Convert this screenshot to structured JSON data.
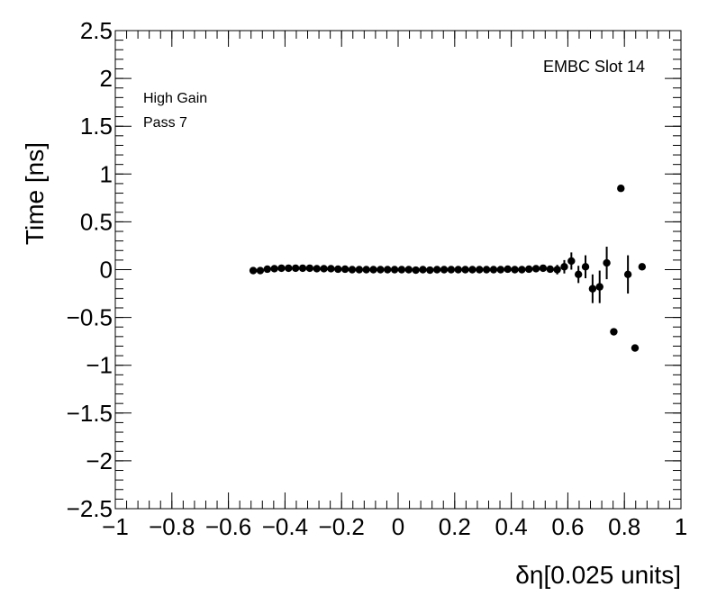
{
  "chart_data": {
    "type": "scatter",
    "title": "",
    "xlabel": "δη[0.025 units]",
    "ylabel": "Time [ns]",
    "xlim": [
      -1,
      1
    ],
    "ylim": [
      -2.5,
      2.5
    ],
    "x_ticks": [
      -1,
      -0.8,
      -0.6,
      -0.4,
      -0.2,
      0,
      0.2,
      0.4,
      0.6,
      0.8,
      1
    ],
    "x_tick_labels": [
      "−1",
      "−0.8",
      "−0.6",
      "−0.4",
      "−0.2",
      "0",
      "0.2",
      "0.4",
      "0.6",
      "0.8",
      "1"
    ],
    "y_ticks": [
      -2.5,
      -2,
      -1.5,
      -1,
      -0.5,
      0,
      0.5,
      1,
      1.5,
      2,
      2.5
    ],
    "y_tick_labels": [
      "−2.5",
      "−2",
      "−1.5",
      "−1",
      "−0.5",
      "0",
      "0.5",
      "1",
      "1.5",
      "2",
      "2.5"
    ],
    "annotations": {
      "slot": "EMBC Slot 14",
      "gain": "High Gain",
      "pass": "Pass 7"
    },
    "marker_color": "#000000",
    "grid": false,
    "points": [
      {
        "x": -0.5125,
        "y": -0.01,
        "err": 0.01
      },
      {
        "x": -0.4875,
        "y": -0.01,
        "err": 0.01
      },
      {
        "x": -0.4625,
        "y": 0.005,
        "err": 0.01
      },
      {
        "x": -0.4375,
        "y": 0.01,
        "err": 0.01
      },
      {
        "x": -0.4125,
        "y": 0.015,
        "err": 0.01
      },
      {
        "x": -0.3875,
        "y": 0.015,
        "err": 0.01
      },
      {
        "x": -0.3625,
        "y": 0.015,
        "err": 0.01
      },
      {
        "x": -0.3375,
        "y": 0.015,
        "err": 0.01
      },
      {
        "x": -0.3125,
        "y": 0.015,
        "err": 0.01
      },
      {
        "x": -0.2875,
        "y": 0.01,
        "err": 0.01
      },
      {
        "x": -0.2625,
        "y": 0.01,
        "err": 0.01
      },
      {
        "x": -0.2375,
        "y": 0.01,
        "err": 0.01
      },
      {
        "x": -0.2125,
        "y": 0.005,
        "err": 0.01
      },
      {
        "x": -0.1875,
        "y": 0.005,
        "err": 0.01
      },
      {
        "x": -0.1625,
        "y": 0.0,
        "err": 0.01
      },
      {
        "x": -0.1375,
        "y": 0.0,
        "err": 0.01
      },
      {
        "x": -0.1125,
        "y": 0.0,
        "err": 0.01
      },
      {
        "x": -0.0875,
        "y": 0.0,
        "err": 0.01
      },
      {
        "x": -0.0625,
        "y": 0.0,
        "err": 0.01
      },
      {
        "x": -0.0375,
        "y": 0.0,
        "err": 0.01
      },
      {
        "x": -0.0125,
        "y": 0.0,
        "err": 0.01
      },
      {
        "x": 0.0125,
        "y": 0.0,
        "err": 0.01
      },
      {
        "x": 0.0375,
        "y": 0.0,
        "err": 0.01
      },
      {
        "x": 0.0625,
        "y": -0.005,
        "err": 0.01
      },
      {
        "x": 0.0875,
        "y": 0.0,
        "err": 0.01
      },
      {
        "x": 0.1125,
        "y": -0.005,
        "err": 0.01
      },
      {
        "x": 0.1375,
        "y": 0.0,
        "err": 0.01
      },
      {
        "x": 0.1625,
        "y": 0.0,
        "err": 0.01
      },
      {
        "x": 0.1875,
        "y": 0.0,
        "err": 0.01
      },
      {
        "x": 0.2125,
        "y": 0.0,
        "err": 0.01
      },
      {
        "x": 0.2375,
        "y": 0.0,
        "err": 0.01
      },
      {
        "x": 0.2625,
        "y": 0.0,
        "err": 0.01
      },
      {
        "x": 0.2875,
        "y": 0.0,
        "err": 0.01
      },
      {
        "x": 0.3125,
        "y": 0.0,
        "err": 0.01
      },
      {
        "x": 0.3375,
        "y": 0.0,
        "err": 0.01
      },
      {
        "x": 0.3625,
        "y": 0.0,
        "err": 0.01
      },
      {
        "x": 0.3875,
        "y": 0.005,
        "err": 0.01
      },
      {
        "x": 0.4125,
        "y": 0.0,
        "err": 0.01
      },
      {
        "x": 0.4375,
        "y": 0.0,
        "err": 0.01
      },
      {
        "x": 0.4625,
        "y": 0.005,
        "err": 0.01
      },
      {
        "x": 0.4875,
        "y": 0.01,
        "err": 0.015
      },
      {
        "x": 0.5125,
        "y": 0.015,
        "err": 0.02
      },
      {
        "x": 0.5375,
        "y": 0.005,
        "err": 0.02
      },
      {
        "x": 0.5625,
        "y": 0.0,
        "err": 0.05
      },
      {
        "x": 0.5875,
        "y": 0.03,
        "err": 0.07
      },
      {
        "x": 0.6125,
        "y": 0.09,
        "err": 0.09
      },
      {
        "x": 0.6375,
        "y": -0.05,
        "err": 0.09
      },
      {
        "x": 0.6625,
        "y": 0.03,
        "err": 0.12
      },
      {
        "x": 0.6875,
        "y": -0.2,
        "err": 0.15
      },
      {
        "x": 0.7125,
        "y": -0.18,
        "err": 0.17
      },
      {
        "x": 0.7375,
        "y": 0.07,
        "err": 0.17
      },
      {
        "x": 0.7625,
        "y": -0.65,
        "err": 0.0
      },
      {
        "x": 0.7875,
        "y": 0.85,
        "err": 0.0
      },
      {
        "x": 0.8125,
        "y": -0.05,
        "err": 0.2
      },
      {
        "x": 0.8375,
        "y": -0.82,
        "err": 0.0
      },
      {
        "x": 0.8625,
        "y": 0.03,
        "err": 0.0
      }
    ]
  }
}
